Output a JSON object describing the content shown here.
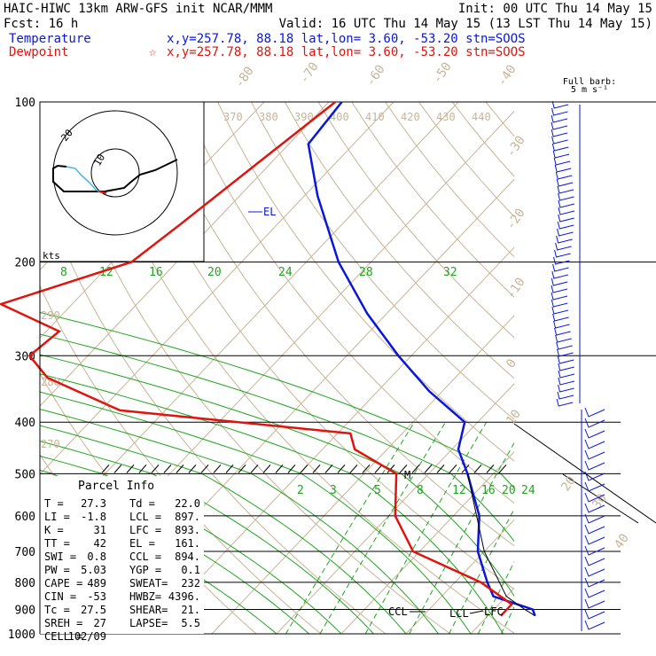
{
  "header": {
    "line1_left": "HAIC-HIWC 13km ARW-GFS init   NCAR/MMM",
    "line1_right": "Init: 00 UTC Thu 14 May 15",
    "line2_left": "Fcst:    16 h",
    "line2_right": "Valid: 16 UTC Thu 14 May 15 (13 LST Thu 14 May 15)",
    "temp_label": "Temperature",
    "temp_info": "x,y=257.78, 88.18    lat,lon=  3.60, -53.20  stn=SOOS",
    "dew_label": "Dewpoint",
    "dew_marker": "☆",
    "dew_info": "x,y=257.78, 88.18    lat,lon=  3.60, -53.20  stn=SOOS"
  },
  "colors": {
    "temperature": "#0a17d8",
    "dewpoint": "#e0140f",
    "isotherm": "#c8b496",
    "mixing": "#1fa51f",
    "axis": "#000000"
  },
  "chart_data": {
    "type": "line",
    "title": "Skew-T log-p sounding",
    "pressure_levels": [
      100,
      200,
      300,
      400,
      500,
      600,
      700,
      800,
      900,
      1000
    ],
    "pressure_labels": [
      "100",
      "200",
      "300",
      "400",
      "500",
      "600",
      "700",
      "800",
      "900",
      "1000"
    ],
    "series": [
      {
        "name": "Temperature",
        "color": "#0a17d8",
        "points": [
          [
            100,
            -78
          ],
          [
            120,
            -77
          ],
          [
            150,
            -68
          ],
          [
            200,
            -55
          ],
          [
            250,
            -43
          ],
          [
            300,
            -32
          ],
          [
            350,
            -22
          ],
          [
            400,
            -12
          ],
          [
            450,
            -9
          ],
          [
            500,
            -4
          ],
          [
            600,
            4
          ],
          [
            700,
            9
          ],
          [
            800,
            15
          ],
          [
            850,
            18
          ],
          [
            900,
            26
          ],
          [
            925,
            27.3
          ]
        ]
      },
      {
        "name": "Dewpoint",
        "color": "#e0140f",
        "points": [
          [
            100,
            -79
          ],
          [
            130,
            -82
          ],
          [
            170,
            -85
          ],
          [
            200,
            -87
          ],
          [
            240,
            -101
          ],
          [
            270,
            -88
          ],
          [
            300,
            -89
          ],
          [
            330,
            -83
          ],
          [
            380,
            -67
          ],
          [
            420,
            -28
          ],
          [
            450,
            -25
          ],
          [
            500,
            -15
          ],
          [
            600,
            -9
          ],
          [
            700,
            -1
          ],
          [
            800,
            14
          ],
          [
            880,
            22
          ],
          [
            925,
            22.0
          ]
        ]
      }
    ],
    "isotherm_labels": [
      "-80",
      "-70",
      "-60",
      "-50",
      "-40",
      "-30",
      "-20",
      "-10",
      "0",
      "10",
      "20",
      "30",
      "40"
    ],
    "theta_labels": [
      "370",
      "380",
      "390",
      "400",
      "410",
      "420",
      "430",
      "440"
    ],
    "theta_side_labels": [
      "290",
      "280",
      "270"
    ],
    "mixing_ratio_upper": [
      "8",
      "12",
      "16",
      "20",
      "24",
      "28",
      "32"
    ],
    "mixing_ratio_lower": [
      "2",
      "3",
      "5",
      "8",
      "12",
      "16",
      "20",
      "24"
    ],
    "levels": {
      "el": "EL",
      "ccl": "CCL",
      "lcl": "LCL",
      "lfc": "LFC",
      "m": "M"
    },
    "hodograph": {
      "unit": "kts",
      "ring_label_inner": "10",
      "ring_label_outer": "20"
    },
    "wind_panel": {
      "title": "Full barb:",
      "subtitle": "5 m s⁻¹"
    }
  },
  "parcel_info": {
    "title": "Parcel Info",
    "rows": [
      [
        "T  =",
        "27.3",
        "Td =",
        "22.0"
      ],
      [
        "LI =",
        "-1.8",
        "LCL =",
        "897."
      ],
      [
        "K  =",
        "31",
        "LFC =",
        "893."
      ],
      [
        "TT =",
        "42",
        "EL =",
        "161."
      ],
      [
        "SWI =",
        "0.8",
        "CCL =",
        "894."
      ],
      [
        "PW =",
        "5.03",
        "YGP =",
        "0.1"
      ],
      [
        "CAPE =",
        "489",
        "SWEAT=",
        "232"
      ],
      [
        "CIN =",
        "-53",
        "HWBZ=",
        "4396."
      ],
      [
        "Tc =",
        "27.5",
        "SHEAR=",
        "21."
      ],
      [
        "SREH =",
        "27",
        "LAPSE=",
        "5.5"
      ],
      [
        "CELL =",
        "102/09",
        "",
        ""
      ]
    ]
  }
}
